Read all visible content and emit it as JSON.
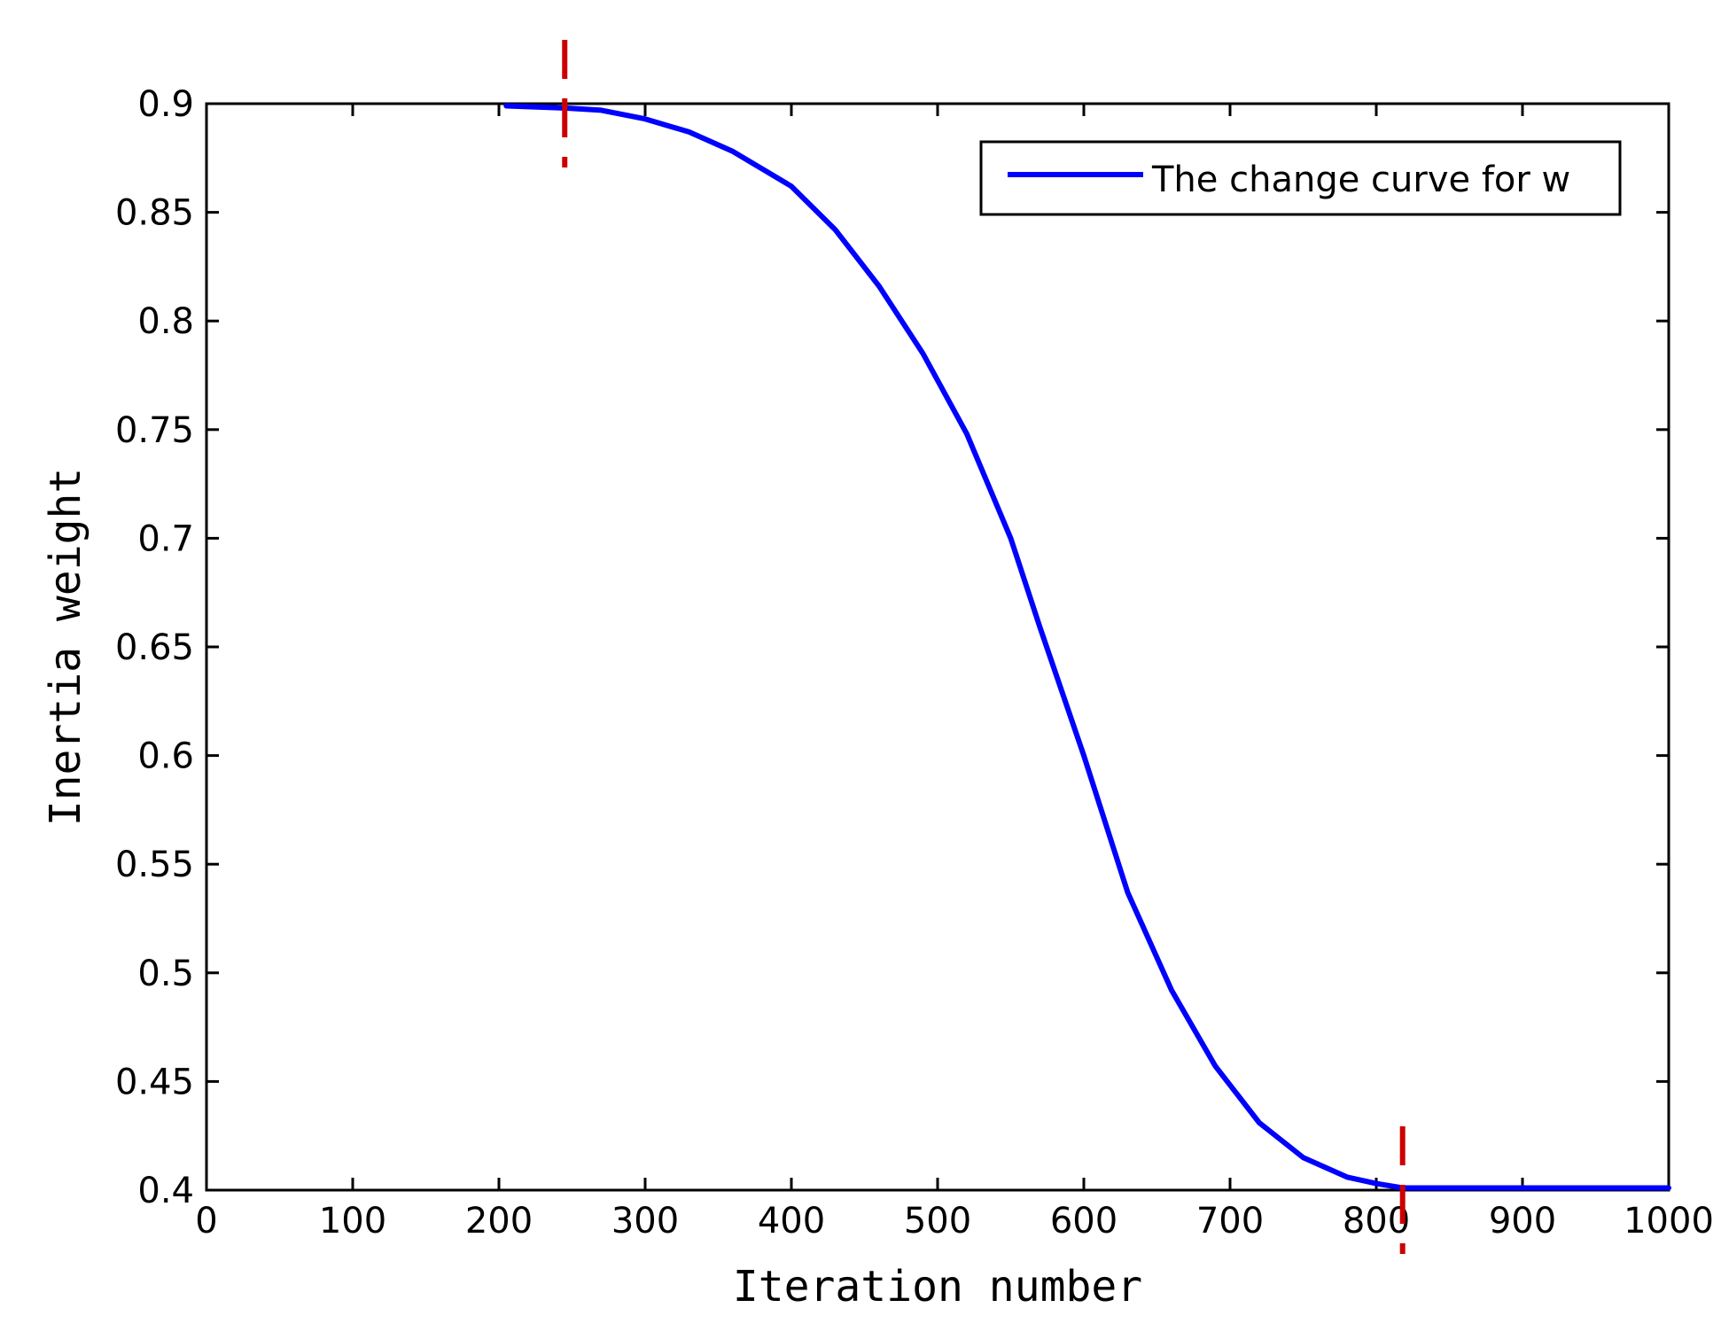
{
  "chart_data": {
    "type": "line",
    "title": "",
    "xlabel": "Iteration number",
    "ylabel": "Inertia weight",
    "xlim": [
      0,
      1000
    ],
    "ylim": [
      0.4,
      0.9
    ],
    "xticks": [
      0,
      100,
      200,
      300,
      400,
      500,
      600,
      700,
      800,
      900,
      1000
    ],
    "xtick_labels": [
      "0",
      "100",
      "200",
      "300",
      "400",
      "500",
      "600",
      "700",
      "800",
      "900",
      "1000"
    ],
    "yticks": [
      0.4,
      0.45,
      0.5,
      0.55,
      0.6,
      0.65,
      0.7,
      0.75,
      0.8,
      0.85,
      0.9
    ],
    "ytick_labels": [
      "0.4",
      "0.45",
      "0.5",
      "0.55",
      "0.6",
      "0.65",
      "0.7",
      "0.75",
      "0.8",
      "0.85",
      "0.9"
    ],
    "grid": false,
    "legend_position": "top-right",
    "series": [
      {
        "name": "The change curve for w",
        "color": "#0000ff",
        "x": [
          205,
          245,
          270,
          300,
          330,
          360,
          400,
          430,
          460,
          490,
          520,
          550,
          570,
          600,
          630,
          660,
          690,
          720,
          750,
          780,
          800,
          818,
          850,
          900,
          950,
          1000
        ],
        "y": [
          0.899,
          0.898,
          0.897,
          0.893,
          0.887,
          0.878,
          0.862,
          0.842,
          0.816,
          0.785,
          0.748,
          0.7,
          0.659,
          0.6,
          0.537,
          0.492,
          0.457,
          0.431,
          0.415,
          0.406,
          0.403,
          0.401,
          0.401,
          0.401,
          0.401,
          0.401
        ]
      }
    ],
    "markers": [
      {
        "x": 245,
        "y": 0.9,
        "color": "#cc0000",
        "style": "dashed-vertical"
      },
      {
        "x": 818,
        "y": 0.4,
        "color": "#cc0000",
        "style": "dashed-vertical"
      }
    ]
  }
}
